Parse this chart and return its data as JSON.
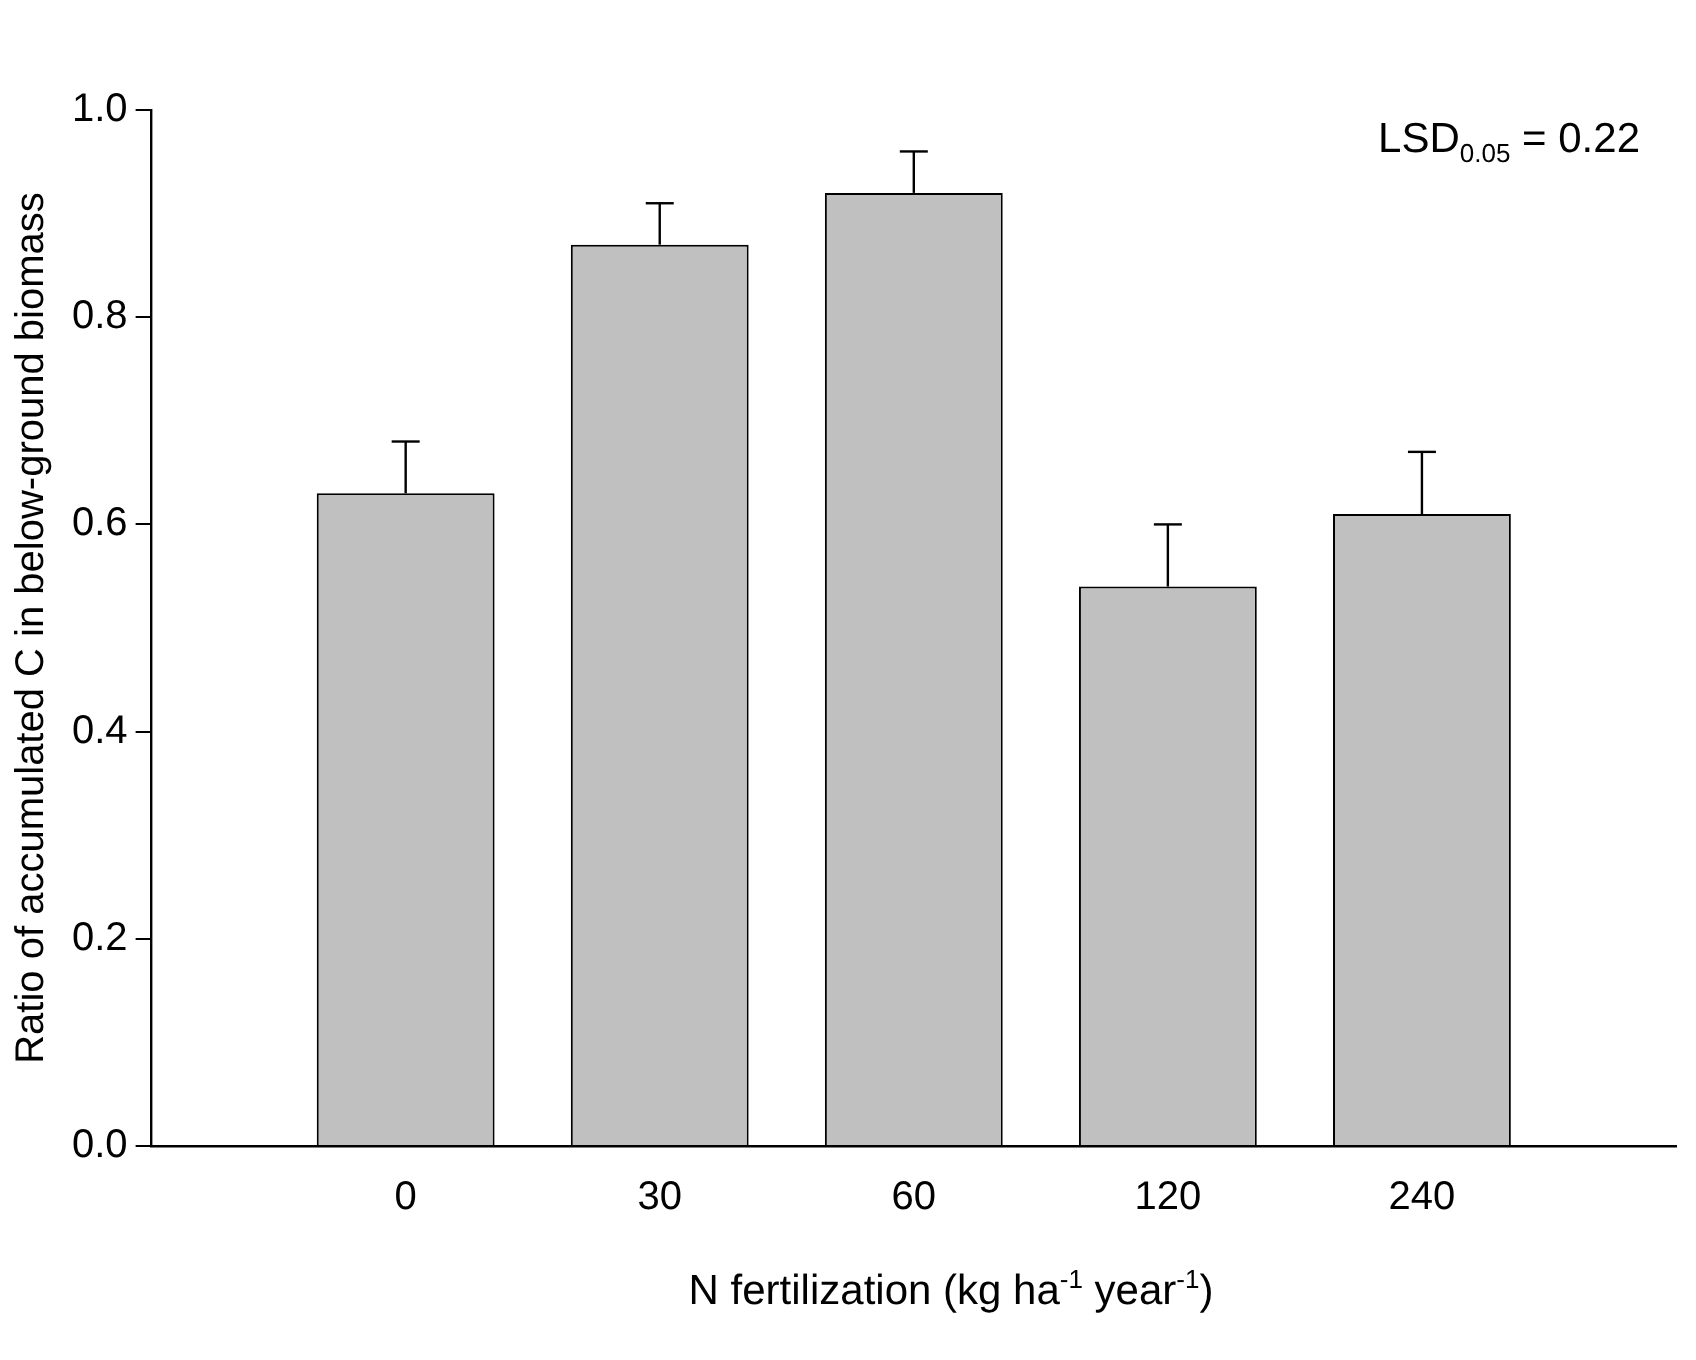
{
  "chart_data": {
    "type": "bar",
    "categories": [
      "0",
      "30",
      "60",
      "120",
      "240"
    ],
    "values": [
      0.63,
      0.87,
      0.92,
      0.54,
      0.61
    ],
    "errors": [
      [
        0.63,
        0.68
      ],
      [
        0.87,
        0.91
      ],
      [
        0.92,
        0.96
      ],
      [
        0.54,
        0.6
      ],
      [
        0.61,
        0.67
      ]
    ],
    "color": "#c0c0c0",
    "xlabel": "N fertilization (kg ha$^{-1}$ year$^{-1}$)",
    "ylabel": "Ratio of accumulated C in below-ground biomass",
    "ylim": [
      0,
      1.0
    ],
    "yticks": [
      {
        "value": 0,
        "label": "0.0"
      },
      {
        "value": 0.2,
        "label": "0.2"
      },
      {
        "value": 0.4,
        "label": "0.4"
      },
      {
        "value": 0.6,
        "label": "0.6"
      },
      {
        "value": 0.8,
        "label": "0.8"
      },
      {
        "value": 1.0,
        "label": "1.0"
      }
    ],
    "annotations": [
      "LSD$_{0.05}$ = 0.22"
    ],
    "grid": false,
    "legend": false
  }
}
